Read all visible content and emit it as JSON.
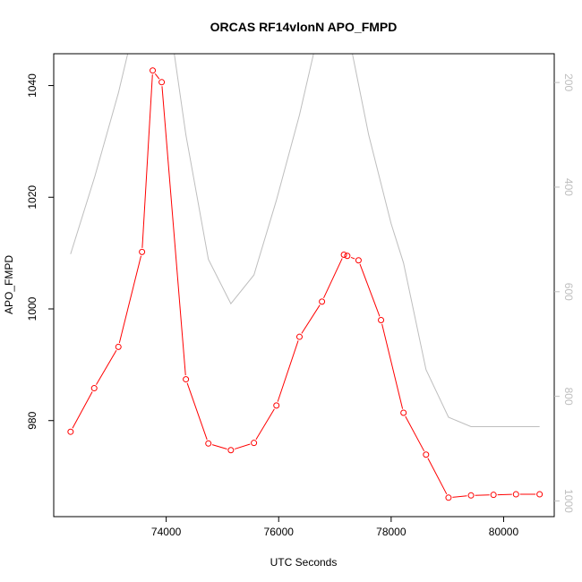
{
  "chart_data": {
    "type": "line",
    "title": "ORCAS RF14vlonN APO_FMPD",
    "xlabel": "UTC Seconds",
    "ylabel": "APO_FMPD",
    "xlim": [
      72000,
      80900
    ],
    "ylim": [
      962.8,
      1045.7
    ],
    "y2lim": [
      145,
      1030
    ],
    "y2_reversed": true,
    "xticks": [
      74000,
      76000,
      78000,
      80000
    ],
    "yticks": [
      980,
      1000,
      1020,
      1040
    ],
    "y2ticks": [
      200,
      400,
      600,
      800,
      1000
    ],
    "grid": false,
    "legend": "none",
    "colors": {
      "primary": "#ff0000",
      "secondary": "#bebebe",
      "axis": "#000000"
    },
    "series": [
      {
        "role": "primary",
        "axis": "left",
        "markers": "open-circle",
        "x": [
          72300,
          72720,
          73150,
          73570,
          73760,
          73920,
          74350,
          74750,
          75150,
          75560,
          75960,
          76370,
          76770,
          77160,
          77220,
          77420,
          77820,
          78220,
          78620,
          79020,
          79420,
          79820,
          80220,
          80640
        ],
        "y": [
          978.0,
          985.8,
          993.2,
          1010.2,
          1042.7,
          1040.6,
          987.4,
          975.9,
          974.7,
          976.0,
          982.7,
          995.0,
          1001.3,
          1009.7,
          1009.5,
          1008.7,
          998.0,
          981.4,
          973.9,
          966.2,
          966.6,
          966.7,
          966.8,
          966.8
        ]
      },
      {
        "role": "secondary",
        "axis": "right",
        "markers": "none",
        "x": [
          72300,
          72730,
          73150,
          73570,
          73990,
          74350,
          74750,
          75150,
          75560,
          75960,
          76370,
          76770,
          77180,
          77600,
          78000,
          78220,
          78620,
          79020,
          79420,
          79820,
          80220,
          80640
        ],
        "y": [
          528,
          380,
          220,
          30,
          30,
          300,
          538,
          623,
          568,
          425,
          262,
          75,
          75,
          300,
          470,
          545,
          749,
          840,
          858,
          858,
          858,
          858
        ]
      }
    ]
  }
}
